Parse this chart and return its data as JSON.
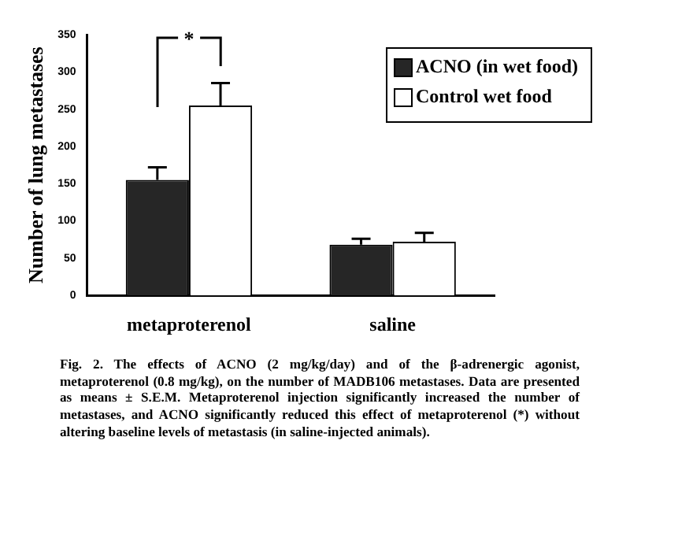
{
  "chart_data": {
    "type": "bar",
    "ylabel": "Number of lung metastases",
    "categories": [
      "metaproterenol",
      "saline"
    ],
    "series": [
      {
        "name": "ACNO (in wet food)",
        "color": "#262626",
        "values": [
          155,
          68
        ],
        "errors": [
          17,
          8
        ]
      },
      {
        "name": "Control wet food",
        "color": "#ffffff",
        "values": [
          255,
          72
        ],
        "errors": [
          30,
          12
        ]
      }
    ],
    "ylim": [
      0,
      350
    ],
    "yticks": [
      0,
      50,
      100,
      150,
      200,
      250,
      300,
      350
    ],
    "grid": false,
    "legend": "top right",
    "annotations": [
      "*",
      "Fig. 2. The effects of ACNO (2 mg/kg/day) and of the β-adrenergic agonist, metaproterenol (0.8 mg/kg), on the number of MADB106 metastases. Data are presented as means ± S.E.M. Metaproterenol injection significantly increased the number of metastases, and ACNO significantly reduced this effect of metaproterenol (*) without altering baseline levels of metastasis (in saline-injected animals)."
    ]
  }
}
